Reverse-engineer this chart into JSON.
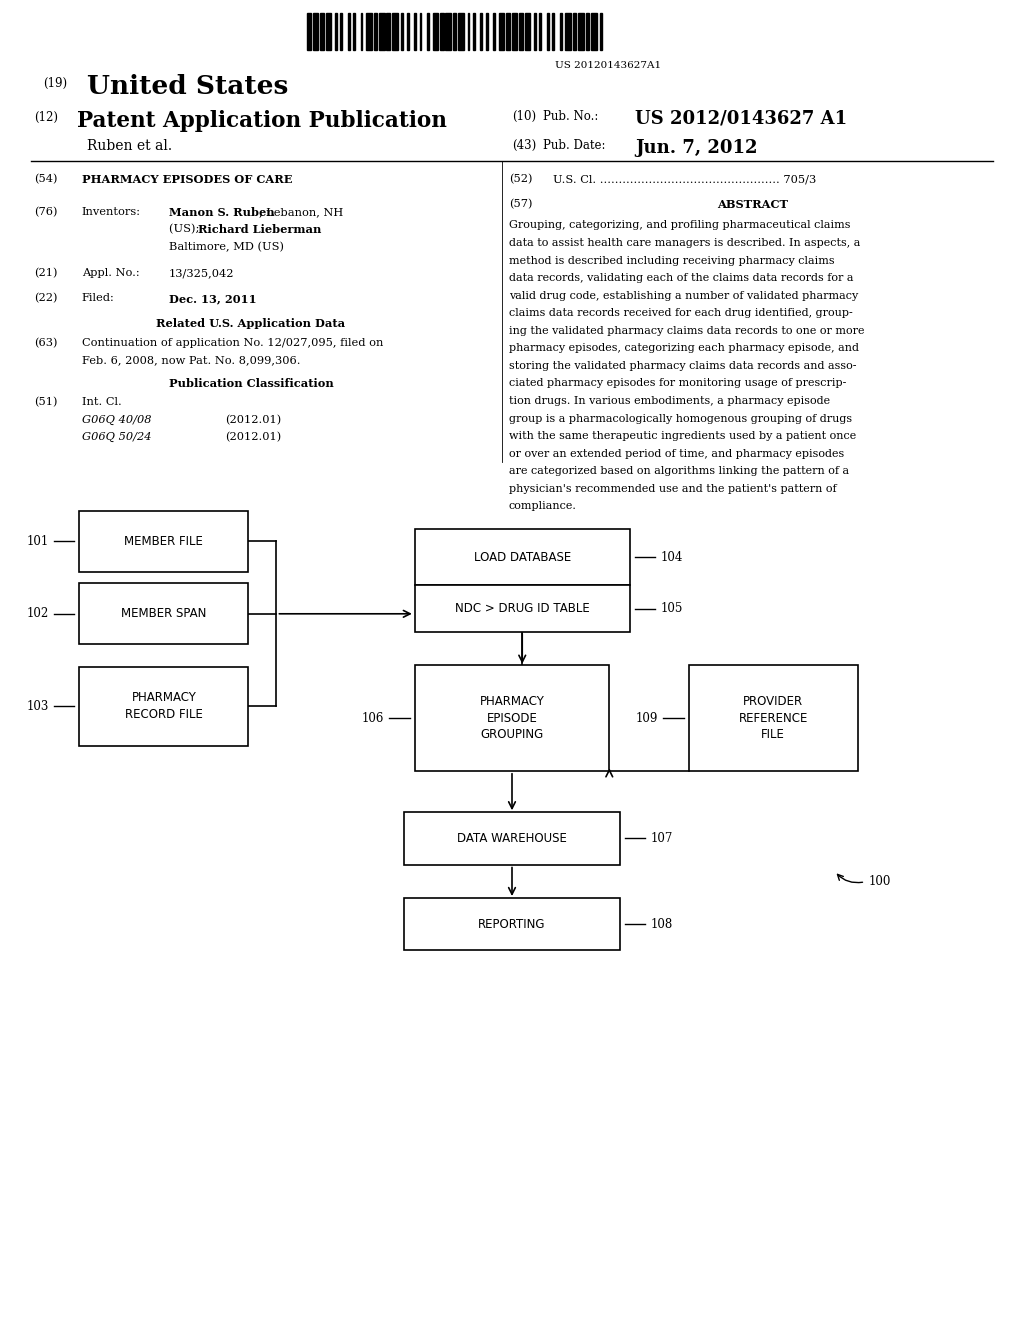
{
  "bg_color": "#ffffff",
  "barcode_text": "US 20120143627A1",
  "abstract_lines": [
    "Grouping, categorizing, and profiling pharmaceutical claims",
    "data to assist health care managers is described. In aspects, a",
    "method is described including receiving pharmacy claims",
    "data records, validating each of the claims data records for a",
    "valid drug code, establishing a number of validated pharmacy",
    "claims data records received for each drug identified, group-",
    "ing the validated pharmacy claims data records to one or more",
    "pharmacy episodes, categorizing each pharmacy episode, and",
    "storing the validated pharmacy claims data records and asso-",
    "ciated pharmacy episodes for monitoring usage of prescrip-",
    "tion drugs. In various embodiments, a pharmacy episode",
    "group is a pharmacologically homogenous grouping of drugs",
    "with the same therapeutic ingredients used by a patient once",
    "or over an extended period of time, and pharmacy episodes",
    "are categorized based on algorithms linking the pattern of a",
    "physician's recommended use and the patient's pattern of",
    "compliance."
  ]
}
